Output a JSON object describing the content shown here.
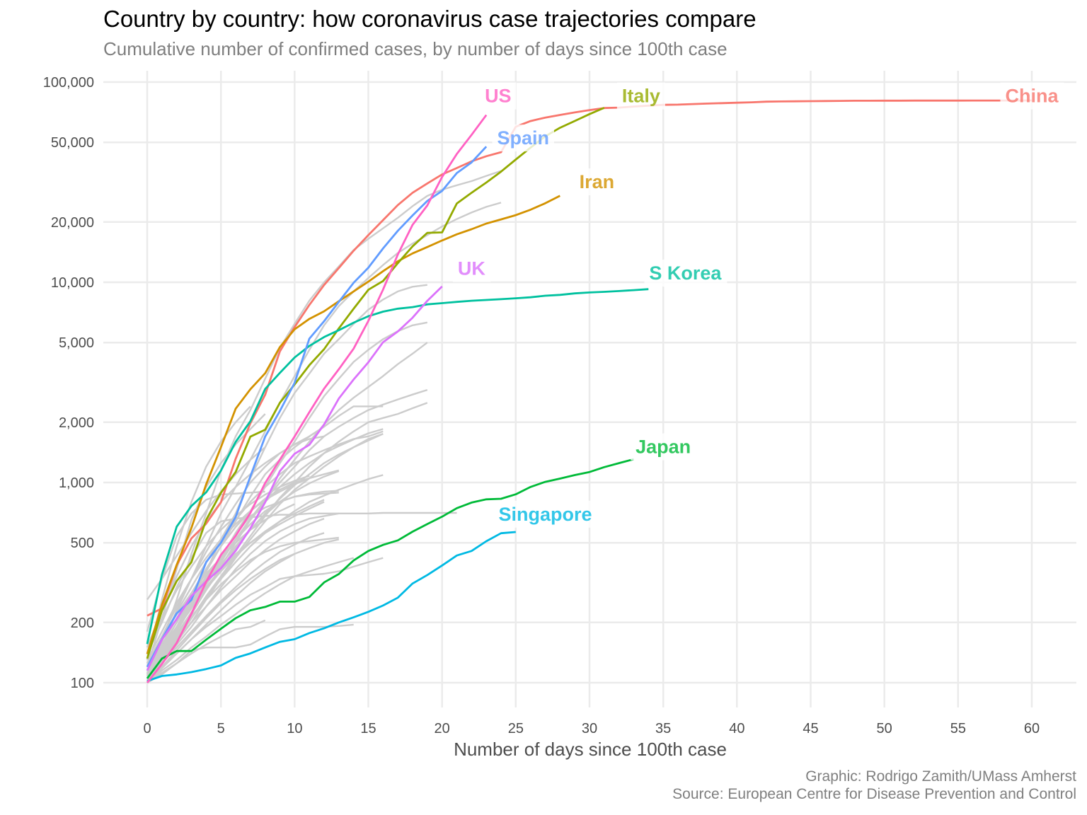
{
  "chart_data": {
    "type": "line",
    "title": "Country by country: how coronavirus case trajectories compare",
    "subtitle": "Cumulative number of confirmed cases, by number of days since 100th case",
    "xlabel": "Number of days since 100th case",
    "ylabel": "",
    "caption": [
      "Graphic: Rodrigo Zamith/UMass Amherst",
      "Source: European Centre for Disease Prevention and Control"
    ],
    "x_scale": "linear",
    "y_scale": "log10",
    "xlim": [
      -3,
      63
    ],
    "ylim": [
      70,
      125000
    ],
    "x_ticks": [
      0,
      5,
      10,
      15,
      20,
      25,
      30,
      35,
      40,
      45,
      50,
      55,
      60
    ],
    "x_tick_labels": [
      "0",
      "5",
      "10",
      "15",
      "20",
      "25",
      "30",
      "35",
      "40",
      "45",
      "50",
      "55",
      "60"
    ],
    "y_ticks": [
      100,
      200,
      500,
      1000,
      2000,
      5000,
      10000,
      20000,
      50000,
      100000
    ],
    "y_tick_labels": [
      "100",
      "200",
      "500",
      "1,000",
      "2,000",
      "5,000",
      "10,000",
      "20,000",
      "50,000",
      "100,000"
    ],
    "grid": true,
    "legend": "none (direct labels at line ends)",
    "highlighted_series": [
      {
        "name": "China",
        "color": "#F8766D",
        "label_day": 60,
        "label_value": 86000,
        "values": [
          216,
          235,
          386,
          526,
          623,
          796,
          1314,
          1975,
          2744,
          4515,
          5974,
          7711,
          9692,
          11791,
          14380,
          17205,
          20438,
          24324,
          28018,
          31161,
          34546,
          37198,
          40171,
          42638,
          44653,
          59804,
          63851,
          66492,
          68500,
          70548,
          72436,
          74185,
          74576,
          75465,
          76288,
          76936,
          77150,
          77658,
          78064,
          78497,
          78824,
          79251,
          79824,
          80026,
          80151,
          80270,
          80409,
          80552,
          80651,
          80695,
          80735,
          80754,
          80778,
          80793,
          80813,
          80824,
          80844,
          80860,
          80881,
          80894,
          80928
        ]
      },
      {
        "name": "Iran",
        "color": "#D39200",
        "label_day": 30.5,
        "label_value": 32000,
        "values": [
          139,
          245,
          388,
          593,
          978,
          1501,
          2336,
          2922,
          3513,
          4747,
          5823,
          6566,
          7161,
          8042,
          9000,
          10075,
          11364,
          12729,
          13938,
          14991,
          16169,
          17361,
          18407,
          19644,
          20610,
          21638,
          23049,
          24811,
          27017
        ]
      },
      {
        "name": "Italy",
        "color": "#93AA00",
        "label_day": 33.5,
        "label_value": 86000,
        "values": [
          132,
          229,
          322,
          400,
          650,
          888,
          1128,
          1694,
          1835,
          2502,
          3089,
          3858,
          4636,
          5883,
          7375,
          9172,
          10149,
          12462,
          15113,
          17660,
          17750,
          24747,
          27980,
          31506,
          35713,
          41035,
          47021,
          53578,
          59138,
          63927,
          69176,
          74386
        ]
      },
      {
        "name": "Japan",
        "color": "#00BA38",
        "label_day": 35,
        "label_value": 1520,
        "values": [
          105,
          132,
          144,
          144,
          164,
          186,
          210,
          230,
          239,
          254,
          254,
          268,
          317,
          349,
          408,
          455,
          488,
          514,
          568,
          620,
          675,
          744,
          794,
          824,
          829,
          873,
          950,
          1007,
          1046,
          1089,
          1128,
          1193,
          1250,
          1307
        ]
      },
      {
        "name": "S Korea",
        "color": "#00C19F",
        "label_day": 36.5,
        "label_value": 11200,
        "values": [
          156,
          346,
          602,
          763,
          893,
          1146,
          1595,
          2022,
          2931,
          3526,
          4212,
          4812,
          5328,
          5766,
          6284,
          6767,
          7134,
          7382,
          7513,
          7755,
          7869,
          7979,
          8086,
          8162,
          8236,
          8320,
          8413,
          8565,
          8652,
          8799,
          8897,
          8961,
          9037,
          9137,
          9241
        ]
      },
      {
        "name": "Singapore",
        "color": "#00B9E3",
        "label_day": 27,
        "label_value": 700,
        "values": [
          102,
          108,
          110,
          113,
          117,
          122,
          133,
          140,
          150,
          160,
          165,
          177,
          187,
          200,
          212,
          226,
          243,
          266,
          313,
          345,
          385,
          432,
          455,
          509,
          558,
          566
        ]
      },
      {
        "name": "Spain",
        "color": "#619CFF",
        "label_day": 25.5,
        "label_value": 53000,
        "values": [
          120,
          165,
          222,
          259,
          400,
          500,
          673,
          1073,
          1695,
          2277,
          3146,
          5232,
          6391,
          7988,
          9942,
          11826,
          14769,
          18077,
          21571,
          25496,
          28603,
          35136,
          39673,
          47610
        ]
      },
      {
        "name": "UK",
        "color": "#DB72FB",
        "label_day": 22,
        "label_value": 11800,
        "values": [
          115,
          164,
          208,
          271,
          321,
          373,
          456,
          590,
          797,
          1140,
          1391,
          1543,
          1950,
          2626,
          3269,
          3983,
          5018,
          5683,
          6650,
          8077,
          9529
        ]
      },
      {
        "name": "US",
        "color": "#FF61C3",
        "label_day": 23.8,
        "label_value": 86000,
        "values": [
          100,
          124,
          158,
          221,
          319,
          435,
          541,
          704,
          994,
          1301,
          1697,
          2247,
          2943,
          3680,
          4663,
          6411,
          9197,
          13779,
          19367,
          24192,
          33592,
          43734,
          54453,
          68440
        ]
      }
    ],
    "background_series_color": "#cccccc",
    "background_series": [
      [
        105,
        160,
        260,
        440,
        700,
        1150,
        1700,
        2300,
        3300,
        4700,
        6200,
        8100,
        10000,
        12000,
        14500,
        16500,
        18600,
        21000,
        24000,
        27000,
        29000,
        30500,
        32000,
        34000,
        36000
      ],
      [
        110,
        150,
        230,
        330,
        480,
        700,
        950,
        1300,
        1800,
        2500,
        3400,
        4600,
        6100,
        7600,
        9000,
        10500,
        12200,
        14000,
        15600,
        17200,
        19000,
        20700,
        22300,
        23800,
        25000
      ],
      [
        130,
        260,
        480,
        800,
        1200,
        1600,
        2000,
        2400
      ],
      [
        120,
        210,
        370,
        650,
        950,
        1250,
        1550,
        1850,
        2200
      ],
      [
        180,
        330,
        540,
        700,
        820,
        870,
        880,
        890,
        900
      ],
      [
        110,
        140,
        190,
        260,
        360,
        520,
        700,
        1050,
        1500,
        2100,
        2800,
        3500,
        4400,
        5200,
        6200,
        7300,
        8200,
        9000,
        9500,
        9700
      ],
      [
        105,
        135,
        180,
        240,
        320,
        420,
        560,
        720,
        950,
        1250,
        1600,
        2100,
        2700,
        3300,
        4000,
        4600,
        5200,
        5700,
        6100,
        6300
      ],
      [
        102,
        130,
        170,
        220,
        290,
        380,
        500,
        650,
        820,
        1050,
        1300,
        1600,
        1950,
        2300,
        2650,
        3000,
        3400,
        3900,
        4400,
        5000
      ],
      [
        108,
        140,
        185,
        240,
        310,
        400,
        520,
        660,
        820,
        1000,
        1200,
        1450,
        1700,
        1900,
        2100,
        2300,
        2450,
        2600,
        2750,
        2900
      ],
      [
        100,
        130,
        165,
        210,
        270,
        340,
        430,
        540,
        680,
        840,
        1000,
        1200,
        1400,
        1600,
        1800,
        2000,
        2100,
        2200,
        2350,
        2500
      ],
      [
        115,
        150,
        200,
        270,
        360,
        480,
        640,
        850,
        1100,
        1300,
        1500,
        1700,
        1900,
        2150,
        2400,
        2400,
        2400
      ],
      [
        110,
        145,
        190,
        250,
        320,
        410,
        520,
        650,
        800,
        950,
        1100,
        1250,
        1400,
        1520,
        1640,
        1760,
        1850
      ],
      [
        105,
        135,
        175,
        225,
        290,
        370,
        470,
        580,
        700,
        830,
        970,
        1100,
        1250,
        1380,
        1500,
        1620,
        1750
      ],
      [
        120,
        165,
        225,
        300,
        400,
        520,
        650,
        800,
        950,
        1100,
        1250,
        1350,
        1450,
        1550,
        1650,
        1700,
        1800
      ],
      [
        100,
        125,
        160,
        200,
        260,
        330,
        420,
        520,
        640,
        780,
        920,
        1050,
        1200,
        1350,
        1500,
        1650,
        1750
      ],
      [
        125,
        170,
        240,
        330,
        450,
        600,
        780,
        1000,
        1200,
        1400,
        1550,
        1650,
        1700
      ],
      [
        115,
        155,
        210,
        280,
        370,
        480,
        600,
        720,
        830,
        920,
        1000,
        1050,
        1100,
        1150
      ],
      [
        105,
        140,
        190,
        250,
        330,
        430,
        550,
        680,
        750,
        800,
        850,
        880,
        900,
        910
      ],
      [
        140,
        200,
        300,
        420,
        560,
        640,
        660,
        670,
        680,
        690,
        690,
        700,
        700,
        700,
        700,
        700,
        705,
        705,
        705,
        705,
        705,
        705
      ],
      [
        110,
        150,
        200,
        260,
        340,
        420,
        520,
        620,
        720,
        800,
        850,
        870,
        880,
        890
      ],
      [
        100,
        125,
        155,
        190,
        240,
        300,
        370,
        440,
        510,
        570,
        620,
        660,
        680,
        700
      ],
      [
        102,
        120,
        145,
        175,
        210,
        250,
        290,
        330,
        370,
        410,
        440,
        470,
        500,
        520
      ],
      [
        110,
        140,
        175,
        215,
        260,
        310,
        360,
        410,
        450,
        480,
        500,
        510,
        520,
        530
      ],
      [
        100,
        115,
        130,
        150,
        170,
        195,
        220,
        250,
        280,
        310,
        340,
        360,
        380,
        400,
        420
      ],
      [
        105,
        120,
        140,
        165,
        190,
        215,
        245,
        275,
        300,
        330,
        340,
        345,
        350,
        360,
        380,
        400,
        420
      ],
      [
        100,
        110,
        125,
        145,
        150,
        150,
        150,
        155,
        170,
        185,
        190,
        190,
        190,
        192,
        195
      ],
      [
        100,
        112,
        125,
        140,
        155,
        170,
        185,
        190,
        205
      ],
      [
        120,
        150,
        190,
        240,
        300,
        370,
        440,
        500,
        560,
        620,
        680,
        740,
        800
      ],
      [
        130,
        180,
        250,
        330,
        420,
        520,
        620,
        720,
        820,
        900,
        980,
        1050
      ],
      [
        110,
        135,
        165,
        200,
        240,
        290,
        340,
        400,
        460,
        520,
        570,
        620,
        660
      ],
      [
        140,
        210,
        290,
        380,
        480,
        580,
        680,
        780,
        870,
        950,
        1020,
        1080
      ],
      [
        105,
        125,
        150,
        180,
        215,
        255,
        300,
        350,
        400,
        450,
        490,
        530,
        560
      ],
      [
        115,
        145,
        185,
        235,
        295,
        360,
        430,
        500,
        570,
        640,
        700,
        760,
        820
      ],
      [
        125,
        170,
        220,
        280,
        350,
        420,
        500,
        580,
        650,
        720,
        780
      ],
      [
        100,
        118,
        140,
        165,
        195,
        230,
        270,
        315,
        360,
        400,
        440
      ],
      [
        260,
        330,
        430,
        560,
        720,
        900,
        1100,
        1300,
        1500
      ],
      [
        100,
        128,
        165,
        210,
        265,
        330,
        400,
        480,
        560,
        640,
        720,
        800,
        860,
        920,
        980,
        1040,
        1090
      ],
      [
        112,
        145,
        190,
        245,
        310,
        390,
        480,
        580,
        690,
        800,
        900,
        990,
        1070,
        1140
      ],
      [
        150,
        230,
        340,
        480,
        640,
        800,
        950,
        1100,
        1250,
        1400,
        1550,
        1700,
        1900
      ]
    ]
  }
}
